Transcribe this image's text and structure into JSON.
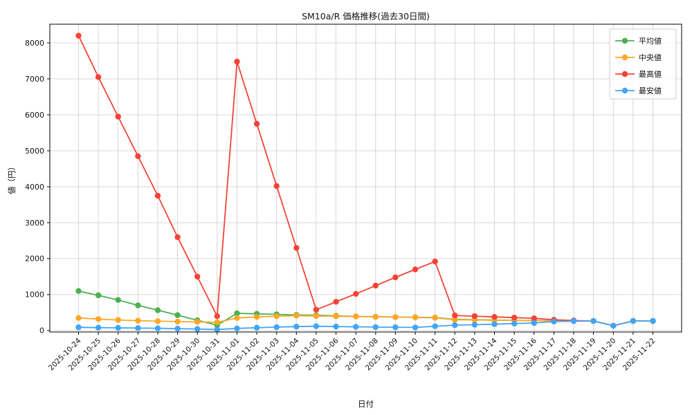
{
  "chart_data": {
    "type": "line",
    "title": "SM10a/R 価格推移(過去30日間)",
    "xlabel": "日付",
    "ylabel": "値（円）",
    "grid": true,
    "grid_color": "#cccccc",
    "background": "#ffffff",
    "legend_position": "upper right",
    "xlim": [
      -1.45,
      30.45
    ],
    "ylim": [
      -40,
      8520
    ],
    "y_ticks": [
      0,
      1000,
      2000,
      3000,
      4000,
      5000,
      6000,
      7000,
      8000
    ],
    "categories": [
      "2025-10-24",
      "2025-10-25",
      "2025-10-26",
      "2025-10-27",
      "2025-10-28",
      "2025-10-29",
      "2025-10-30",
      "2025-10-31",
      "2025-11-01",
      "2025-11-02",
      "2025-11-03",
      "2025-11-04",
      "2025-11-05",
      "2025-11-06",
      "2025-11-07",
      "2025-11-08",
      "2025-11-09",
      "2025-11-10",
      "2025-11-11",
      "2025-11-12",
      "2025-11-13",
      "2025-11-14",
      "2025-11-15",
      "2025-11-16",
      "2025-11-17",
      "2025-11-18",
      "2025-11-19",
      "2025-11-20",
      "2025-11-21",
      "2025-11-22"
    ],
    "series": [
      {
        "name": "平均値",
        "color": "#4caf50",
        "values": [
          1100,
          980,
          850,
          700,
          565,
          430,
          285,
          150,
          480,
          465,
          450,
          435,
          425,
          410,
          395,
          385,
          375,
          370,
          360,
          310,
          300,
          290,
          285,
          278,
          272,
          265,
          265,
          135,
          265,
          265
        ]
      },
      {
        "name": "中央値",
        "color": "#ffa726",
        "values": [
          350,
          320,
          295,
          275,
          260,
          250,
          240,
          230,
          350,
          380,
          400,
          415,
          405,
          398,
          390,
          382,
          375,
          365,
          355,
          300,
          295,
          288,
          282,
          275,
          270,
          265,
          265,
          135,
          265,
          265
        ]
      },
      {
        "name": "最高値",
        "color": "#f44336",
        "values": [
          8200,
          7050,
          5950,
          4850,
          3750,
          2600,
          1500,
          400,
          7480,
          5750,
          4020,
          2300,
          580,
          800,
          1020,
          1250,
          1480,
          1700,
          1920,
          420,
          400,
          380,
          360,
          340,
          300,
          280,
          265,
          135,
          265,
          265
        ]
      },
      {
        "name": "最安値",
        "color": "#42a5f5",
        "values": [
          90,
          82,
          76,
          70,
          64,
          55,
          45,
          30,
          60,
          80,
          95,
          110,
          120,
          112,
          104,
          97,
          92,
          86,
          120,
          150,
          162,
          178,
          195,
          210,
          250,
          262,
          265,
          135,
          265,
          265
        ]
      }
    ]
  }
}
